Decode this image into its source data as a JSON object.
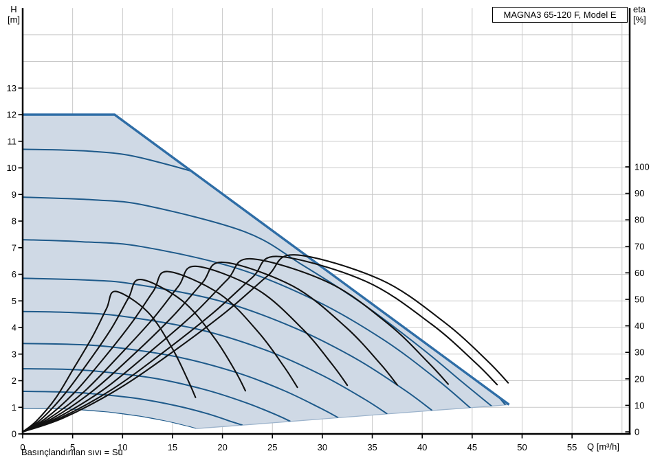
{
  "header": {
    "title": "MAGNA3 65-120 F, Model E"
  },
  "axis_corner_labels": {
    "left_line1": "H",
    "left_line2": "[m]",
    "right_line1": "eta",
    "right_line2": "[%]",
    "x_axis": "Q [m³/h]"
  },
  "caption": "Basınçlandırılan sıvı = Su",
  "chart_data": {
    "type": "line",
    "title": "MAGNA3 65-120 F, Model E",
    "xlabel": "Q [m³/h]",
    "ylabel_left": "H [m]",
    "ylabel_right": "eta [%]",
    "x_ticks": [
      0,
      5,
      10,
      15,
      20,
      25,
      30,
      35,
      40,
      45,
      50,
      55
    ],
    "h_ticks": [
      0,
      1,
      2,
      3,
      4,
      5,
      6,
      7,
      8,
      9,
      10,
      11,
      12,
      13
    ],
    "eta_ticks": [
      0,
      10,
      20,
      30,
      40,
      50,
      60,
      70,
      80,
      90,
      100
    ],
    "q_gridlines": [
      5,
      10,
      15,
      20,
      25,
      30,
      35,
      40,
      45,
      50,
      55,
      60
    ],
    "h_gridlines": [
      1,
      2,
      3,
      4,
      5,
      6,
      7,
      8,
      9,
      10,
      11,
      12,
      13,
      14,
      15
    ],
    "x_range": [
      0,
      60.8
    ],
    "h_range": [
      0,
      16
    ],
    "eta_range": [
      0,
      100
    ],
    "grid": true,
    "legend": "none",
    "duty_envelope": [
      [
        0,
        12
      ],
      [
        9.2,
        12
      ],
      [
        48.7,
        1.1
      ],
      [
        45,
        0.99
      ],
      [
        41,
        0.88
      ],
      [
        36.5,
        0.75
      ],
      [
        31.6,
        0.61
      ],
      [
        26.8,
        0.47
      ],
      [
        22,
        0.33
      ],
      [
        17.3,
        0.2
      ],
      [
        16.6,
        0.27
      ],
      [
        14.5,
        0.46
      ],
      [
        11.8,
        0.65
      ],
      [
        8.6,
        0.81
      ],
      [
        4.8,
        0.92
      ],
      [
        3,
        0.94
      ],
      [
        0,
        0.95
      ]
    ],
    "max_curve": [
      [
        0,
        12
      ],
      [
        9.2,
        12
      ],
      [
        48.7,
        1.1
      ]
    ],
    "min_flow_edge": [
      [
        17.3,
        0.2
      ],
      [
        22,
        0.33
      ],
      [
        26.8,
        0.47
      ],
      [
        31.6,
        0.61
      ],
      [
        36.5,
        0.75
      ],
      [
        41,
        0.88
      ],
      [
        45,
        0.99
      ],
      [
        48.7,
        1.1
      ]
    ],
    "pump_curves": [
      {
        "h0": 10.7,
        "points": [
          [
            0,
            10.7
          ],
          [
            7,
            10.62
          ],
          [
            12.6,
            10.31
          ],
          [
            22.7,
            9.13
          ],
          [
            31.3,
            7.3
          ],
          [
            38.4,
            5.16
          ],
          [
            43.9,
            3.04
          ],
          [
            48,
            1.24
          ],
          [
            48.3,
            1.08
          ]
        ]
      },
      {
        "h0": 8.9,
        "points": [
          [
            0,
            8.9
          ],
          [
            7,
            8.8
          ],
          [
            12.4,
            8.58
          ],
          [
            22.3,
            7.59
          ],
          [
            28,
            6.35
          ],
          [
            34,
            4.9
          ],
          [
            40,
            3.2
          ],
          [
            44,
            1.95
          ],
          [
            47,
            1.03
          ]
        ]
      },
      {
        "h0": 7.3,
        "points": [
          [
            0,
            7.3
          ],
          [
            6,
            7.22
          ],
          [
            11.9,
            7.04
          ],
          [
            21.4,
            6.23
          ],
          [
            29.5,
            4.98
          ],
          [
            36.2,
            3.52
          ],
          [
            41.4,
            2.07
          ],
          [
            44.9,
            0.95
          ]
        ]
      },
      {
        "h0": 5.85,
        "points": [
          [
            0,
            5.85
          ],
          [
            6,
            5.79
          ],
          [
            11,
            5.64
          ],
          [
            19.8,
            4.99
          ],
          [
            27.2,
            3.99
          ],
          [
            33.4,
            2.82
          ],
          [
            38.2,
            1.66
          ],
          [
            41,
            0.88
          ]
        ]
      },
      {
        "h0": 4.6,
        "points": [
          [
            0,
            4.6
          ],
          [
            5,
            4.56
          ],
          [
            9.8,
            4.43
          ],
          [
            17.7,
            3.92
          ],
          [
            24.4,
            3.14
          ],
          [
            29.9,
            2.22
          ],
          [
            34.2,
            1.31
          ],
          [
            36.5,
            0.75
          ]
        ]
      },
      {
        "h0": 3.4,
        "points": [
          [
            0,
            3.4
          ],
          [
            4.5,
            3.37
          ],
          [
            8.6,
            3.28
          ],
          [
            15.4,
            2.9
          ],
          [
            21.3,
            2.32
          ],
          [
            26.1,
            1.64
          ],
          [
            29.8,
            0.97
          ],
          [
            31.6,
            0.61
          ]
        ]
      },
      {
        "h0": 2.45,
        "points": [
          [
            0,
            2.45
          ],
          [
            4,
            2.43
          ],
          [
            7.3,
            2.36
          ],
          [
            13.2,
            2.09
          ],
          [
            18.2,
            1.67
          ],
          [
            22.3,
            1.18
          ],
          [
            25.5,
            0.7
          ],
          [
            26.8,
            0.47
          ]
        ]
      },
      {
        "h0": 1.6,
        "points": [
          [
            0,
            1.6
          ],
          [
            3.5,
            1.58
          ],
          [
            6,
            1.54
          ],
          [
            10.9,
            1.36
          ],
          [
            15,
            1.09
          ],
          [
            18.4,
            0.77
          ],
          [
            21,
            0.45
          ],
          [
            22,
            0.33
          ]
        ]
      },
      {
        "h0": 0.95,
        "points": [
          [
            0,
            0.95
          ],
          [
            3,
            0.94
          ],
          [
            4.8,
            0.92
          ],
          [
            8.6,
            0.81
          ],
          [
            11.8,
            0.65
          ],
          [
            14.5,
            0.46
          ],
          [
            16.6,
            0.27
          ],
          [
            17.3,
            0.2
          ]
        ]
      }
    ],
    "efficiency_curves": [
      {
        "eta_peak": 53,
        "points": [
          [
            0,
            0
          ],
          [
            1.4,
            4.2
          ],
          [
            3.3,
            12.7
          ],
          [
            5.1,
            23.9
          ],
          [
            7,
            36
          ],
          [
            8.4,
            46.6
          ],
          [
            9.3,
            53
          ],
          [
            12.5,
            45.3
          ],
          [
            14.9,
            32
          ],
          [
            16.5,
            19.9
          ],
          [
            17.3,
            13
          ]
        ]
      },
      {
        "eta_peak": 57.5,
        "points": [
          [
            0,
            0
          ],
          [
            1.8,
            4.6
          ],
          [
            4.1,
            13.8
          ],
          [
            6.5,
            25.9
          ],
          [
            8.9,
            39.1
          ],
          [
            10.6,
            50.6
          ],
          [
            11.8,
            57.5
          ],
          [
            16,
            49.4
          ],
          [
            19.2,
            35.4
          ],
          [
            21.3,
            22.8
          ],
          [
            22.3,
            15.5
          ]
        ]
      },
      {
        "eta_peak": 60.5,
        "points": [
          [
            0,
            0
          ],
          [
            2.2,
            4.8
          ],
          [
            5.1,
            14.5
          ],
          [
            8,
            27.2
          ],
          [
            10.9,
            41.1
          ],
          [
            13.1,
            53.2
          ],
          [
            14.5,
            60.5
          ],
          [
            19.7,
            52.1
          ],
          [
            23.6,
            37.6
          ],
          [
            26.2,
            24.4
          ],
          [
            27.5,
            16.8
          ]
        ]
      },
      {
        "eta_peak": 62.5,
        "points": [
          [
            0,
            0
          ],
          [
            2.6,
            5
          ],
          [
            6.1,
            15
          ],
          [
            9.5,
            28.1
          ],
          [
            13,
            42.5
          ],
          [
            15.6,
            55
          ],
          [
            17.3,
            62.5
          ],
          [
            23.4,
            53.9
          ],
          [
            28,
            38.9
          ],
          [
            31,
            25.4
          ],
          [
            32.5,
            17.6
          ]
        ]
      },
      {
        "eta_peak": 64,
        "points": [
          [
            0,
            0
          ],
          [
            3,
            5.1
          ],
          [
            7,
            15.4
          ],
          [
            11,
            28.8
          ],
          [
            15,
            43.5
          ],
          [
            18,
            56.3
          ],
          [
            20,
            64
          ],
          [
            27,
            55.1
          ],
          [
            32.3,
            39.7
          ],
          [
            35.8,
            25.7
          ],
          [
            37.5,
            17.7
          ]
        ]
      },
      {
        "eta_peak": 65.3,
        "points": [
          [
            0,
            0
          ],
          [
            3.4,
            5.2
          ],
          [
            8,
            15.7
          ],
          [
            12.5,
            29.4
          ],
          [
            17.1,
            44.4
          ],
          [
            20.5,
            57.5
          ],
          [
            22.8,
            65.3
          ],
          [
            30.7,
            56.2
          ],
          [
            36.7,
            40.4
          ],
          [
            40.6,
            26.2
          ],
          [
            42.6,
            18
          ]
        ]
      },
      {
        "eta_peak": 66.2,
        "points": [
          [
            0,
            0
          ],
          [
            3.8,
            5.3
          ],
          [
            8.9,
            15.9
          ],
          [
            14,
            29.8
          ],
          [
            19.1,
            45
          ],
          [
            23,
            58.3
          ],
          [
            25.5,
            66.2
          ],
          [
            34.3,
            56.9
          ],
          [
            40.9,
            40.7
          ],
          [
            45.3,
            26.2
          ],
          [
            47.5,
            17.8
          ]
        ]
      },
      {
        "eta_peak": 66.8,
        "points": [
          [
            0,
            0
          ],
          [
            4.1,
            5.3
          ],
          [
            9.5,
            16
          ],
          [
            15,
            30.1
          ],
          [
            20.4,
            45.4
          ],
          [
            24.5,
            58.8
          ],
          [
            27.2,
            66.8
          ],
          [
            35.8,
            57.5
          ],
          [
            42.2,
            41.4
          ],
          [
            46.5,
            26.9
          ],
          [
            48.6,
            18.5
          ]
        ]
      }
    ],
    "colors": {
      "region_fill": "#cfd9e5",
      "pump_curve": "#1e5a8a",
      "max_curve": "#2e6da6",
      "min_flow_edge": "#9db4cc",
      "efficiency_curve": "#121212",
      "grid": "#c8c8c8",
      "axis": "#000000"
    }
  }
}
